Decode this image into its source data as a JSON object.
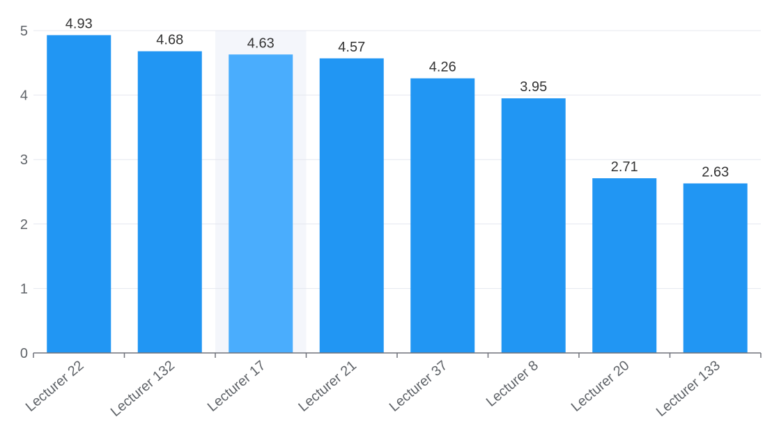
{
  "colors": {
    "bar": "#2196F3",
    "bar_highlight": "#4AADFD",
    "hover_band": "#F4F6FB",
    "grid": "#E4E7EF",
    "axis": "#6E7079"
  },
  "chart_data": {
    "type": "bar",
    "title": "",
    "xlabel": "",
    "ylabel": "",
    "categories": [
      "Lecturer 22",
      "Lecturer 132",
      "Lecturer 17",
      "Lecturer 21",
      "Lecturer 37",
      "Lecturer 8",
      "Lecturer 20",
      "Lecturer 133"
    ],
    "values": [
      4.93,
      4.68,
      4.63,
      4.57,
      4.26,
      3.95,
      2.71,
      2.63
    ],
    "value_labels": [
      "4.93",
      "4.68",
      "4.63",
      "4.57",
      "4.26",
      "3.95",
      "2.71",
      "2.63"
    ],
    "ylim": [
      0,
      5
    ],
    "yticks": [
      "0",
      "1",
      "2",
      "3",
      "4",
      "5"
    ],
    "grid": true,
    "highlighted_category": "Lecturer 17"
  }
}
